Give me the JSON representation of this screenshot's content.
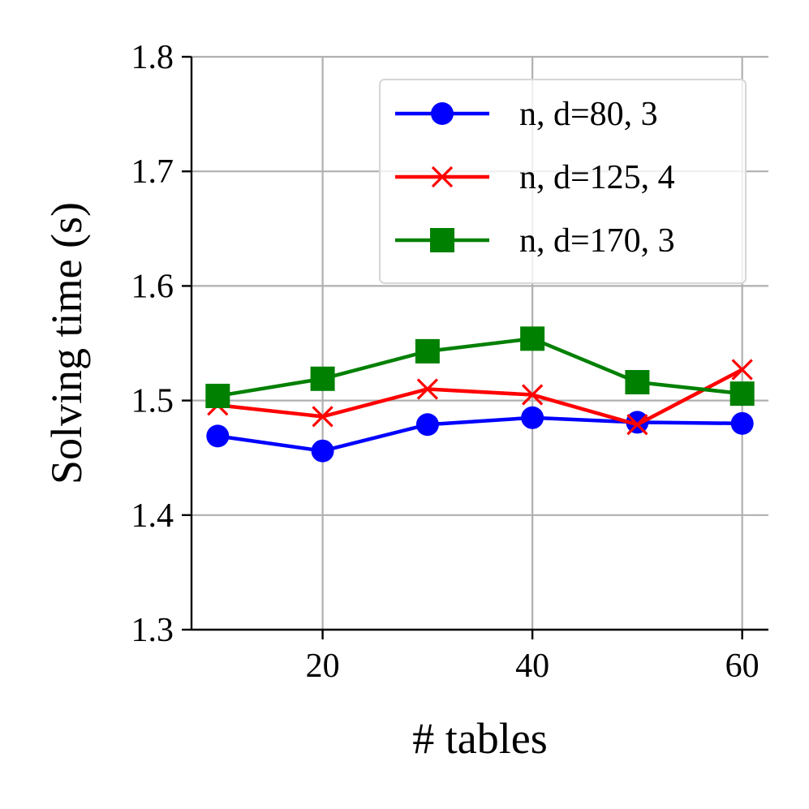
{
  "chart_data": {
    "type": "line",
    "title": "",
    "xlabel": "# tables",
    "ylabel": "Solving time (s)",
    "x": [
      10,
      20,
      30,
      40,
      50,
      60
    ],
    "xlim": [
      7.5,
      62.5
    ],
    "ylim": [
      1.3,
      1.8
    ],
    "xticks": [
      20,
      40,
      60
    ],
    "xtick_labels": [
      "20",
      "40",
      "60"
    ],
    "yticks": [
      1.3,
      1.4,
      1.5,
      1.6,
      1.7,
      1.8
    ],
    "ytick_labels": [
      "1.3",
      "1.4",
      "1.5",
      "1.6",
      "1.7",
      "1.8"
    ],
    "grid": true,
    "legend_position": "top-right",
    "series": [
      {
        "name": "n, d=80, 3",
        "color": "#0000ff",
        "marker": "circle",
        "values": [
          1.469,
          1.456,
          1.479,
          1.485,
          1.481,
          1.48
        ]
      },
      {
        "name": "n, d=125, 4",
        "color": "#ff0000",
        "marker": "x",
        "values": [
          1.496,
          1.486,
          1.51,
          1.505,
          1.479,
          1.527
        ]
      },
      {
        "name": "n, d=170, 3",
        "color": "#008000",
        "marker": "square",
        "values": [
          1.504,
          1.519,
          1.543,
          1.554,
          1.516,
          1.506
        ]
      }
    ]
  }
}
